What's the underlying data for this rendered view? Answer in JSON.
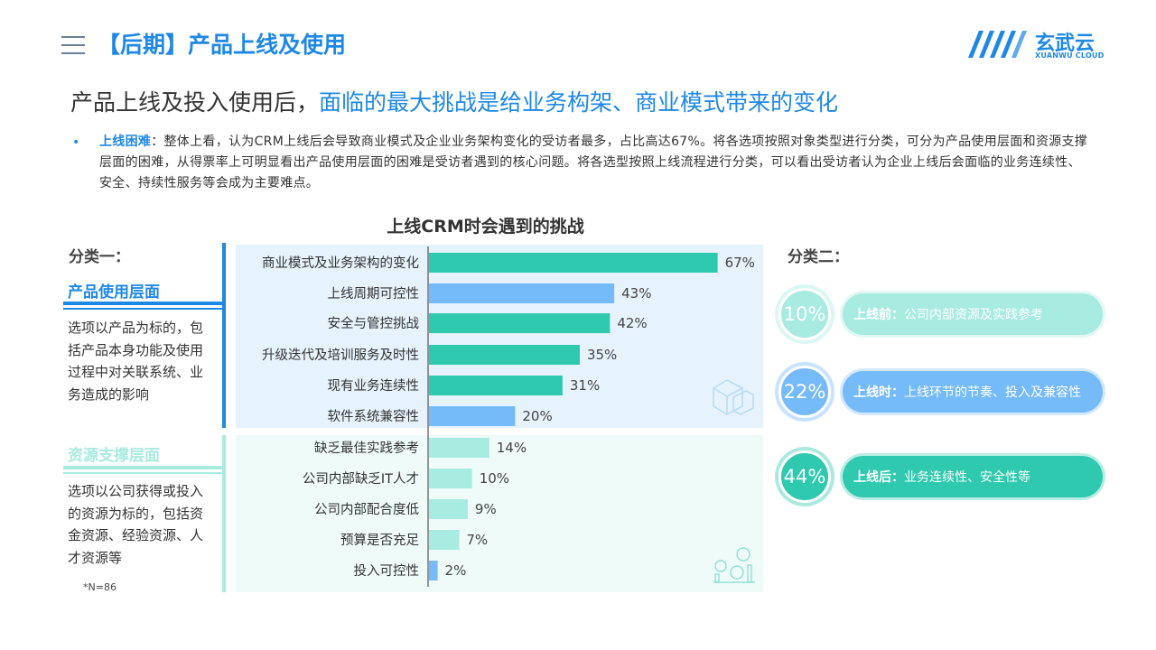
{
  "header": {
    "title": "【后期】产品上线及使用",
    "logo_cn": "玄武云",
    "logo_en": "XUANWU CLOUD"
  },
  "headline": {
    "part_a": "产品上线及投入使用后，",
    "part_b": "面临的最大挑战是给业务构架、商业模式带来的变化"
  },
  "bullet": {
    "lead": "上线困难",
    "text": "：整体上看，认为CRM上线后会导致商业模式及企业业务架构变化的受访者最多，占比高达67%。将各选项按照对象类型进行分类，可分为产品使用层面和资源支撑层面的困难，从得票率上可明显看出产品使用层面的困难是受访者遇到的核心问题。将各选型按照上线流程进行分类，可以看出受访者认为企业上线后会面临的业务连续性、安全、持续性服务等会成为主要难点。"
  },
  "left_panel": {
    "category_label": "分类一：",
    "group1_title": "产品使用层面",
    "group1_desc": "选项以产品为标的，包括产品本身功能及使用过程中对关联系统、业务造成的影响",
    "group2_title": "资源支撑层面",
    "group2_desc": "选项以公司获得或投入的资源为标的，包括资金资源、经验资源、人才资源等",
    "note": "*N=86"
  },
  "right_panel": {
    "category_label": "分类二：",
    "items": [
      {
        "value": "10%",
        "stage": "上线前：",
        "text": "公司内部资源及实践参考",
        "circle_color": "#a8ebe0",
        "pill_color": "#a8ebe0"
      },
      {
        "value": "22%",
        "stage": "上线时：",
        "text": "上线环节的节奏、投入及兼容性",
        "circle_color": "#75baf9",
        "pill_color": "#75baf9"
      },
      {
        "value": "44%",
        "stage": "上线后：",
        "text": "业务连续性、安全性等",
        "circle_color": "#2ec9ae",
        "pill_color": "#2ec9ae"
      }
    ]
  },
  "chart_data": {
    "type": "bar",
    "orientation": "horizontal",
    "title": "上线CRM时会遇到的挑战",
    "categories": [
      "商业模式及业务架构的变化",
      "上线周期可控性",
      "安全与管控挑战",
      "升级迭代及培训服务及时性",
      "现有业务连续性",
      "软件系统兼容性",
      "缺乏最佳实践参考",
      "公司内部缺乏IT人才",
      "公司内部配合度低",
      "预算是否充足",
      "投入可控性"
    ],
    "values": [
      67,
      43,
      42,
      35,
      31,
      20,
      14,
      10,
      9,
      7,
      2
    ],
    "value_labels": [
      "67%",
      "43%",
      "42%",
      "35%",
      "31%",
      "20%",
      "14%",
      "10%",
      "9%",
      "7%",
      "2%"
    ],
    "bar_colors": [
      "#2ec9ae",
      "#75baf9",
      "#2ec9ae",
      "#2ec9ae",
      "#2ec9ae",
      "#75baf9",
      "#a8ebe0",
      "#a8ebe0",
      "#a8ebe0",
      "#a8ebe0",
      "#75baf9"
    ],
    "unit": "%",
    "xlim": [
      0,
      100
    ],
    "grid": false,
    "legend": "none"
  }
}
